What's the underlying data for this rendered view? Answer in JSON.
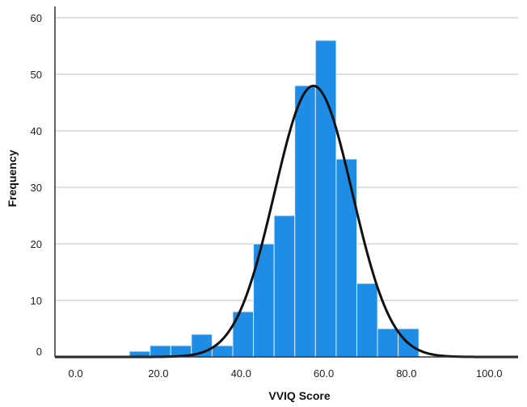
{
  "chart_data": {
    "type": "bar",
    "title": "",
    "xlabel": "VVIQ Score",
    "ylabel": "Frequency",
    "xlim": [
      -5,
      107
    ],
    "ylim": [
      0,
      62
    ],
    "x_ticks": [
      0,
      20,
      40,
      60,
      80,
      100
    ],
    "x_tick_labels": [
      "0.0",
      "20.0",
      "40.0",
      "60.0",
      "80.0",
      "100.0"
    ],
    "y_ticks": [
      0,
      10,
      20,
      30,
      40,
      50,
      60
    ],
    "y_tick_labels": [
      "0",
      "10",
      "20",
      "30",
      "40",
      "50",
      "60"
    ],
    "grid": "horizontal",
    "bin_width": 5,
    "bins": [
      {
        "start": 13.0,
        "count": 1
      },
      {
        "start": 18.0,
        "count": 2
      },
      {
        "start": 23.0,
        "count": 2
      },
      {
        "start": 28.0,
        "count": 4
      },
      {
        "start": 33.0,
        "count": 2
      },
      {
        "start": 38.0,
        "count": 8
      },
      {
        "start": 43.0,
        "count": 20
      },
      {
        "start": 48.0,
        "count": 25
      },
      {
        "start": 53.0,
        "count": 48
      },
      {
        "start": 58.0,
        "count": 56
      },
      {
        "start": 63.0,
        "count": 35
      },
      {
        "start": 68.0,
        "count": 13
      },
      {
        "start": 73.0,
        "count": 5
      },
      {
        "start": 78.0,
        "count": 5
      }
    ],
    "normal_curve": {
      "mean": 57.5,
      "sd": 9.4,
      "n": 226
    },
    "colors": {
      "bar": "#1f8de6",
      "bar_edge": "#d9ecfb",
      "curve": "#111111",
      "grid": "#bfbfbf",
      "axis": "#333333"
    }
  }
}
